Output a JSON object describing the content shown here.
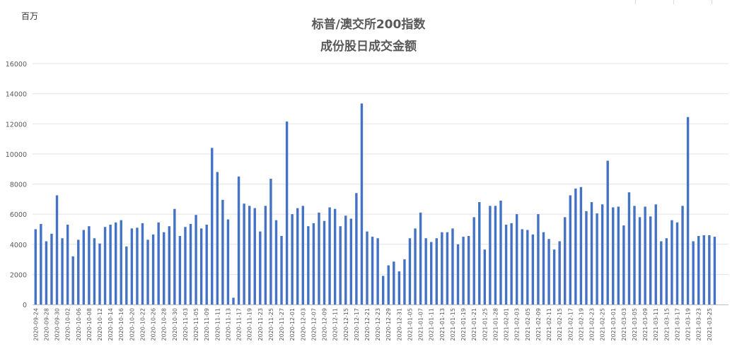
{
  "chart_data": {
    "type": "bar",
    "title": "标普/澳交所200指数",
    "subtitle": "成份股日成交金额",
    "ylabel": "百万",
    "ylim": [
      0,
      16000
    ],
    "yticks": [
      0,
      2000,
      4000,
      6000,
      8000,
      10000,
      12000,
      14000,
      16000
    ],
    "grid": true,
    "bar_color": "#4472C4",
    "x_labels": [
      "2020-09-24",
      "2020-09-28",
      "2020-09-30",
      "2020-10-02",
      "2020-10-06",
      "2020-10-08",
      "2020-10-12",
      "2020-10-14",
      "2020-10-16",
      "2020-10-20",
      "2020-10-22",
      "2020-10-26",
      "2020-10-28",
      "2020-10-30",
      "2020-11-03",
      "2020-11-05",
      "2020-11-09",
      "2020-11-11",
      "2020-11-13",
      "2020-11-17",
      "2020-11-19",
      "2020-11-23",
      "2020-11-25",
      "2020-11-27",
      "2020-12-01",
      "2020-12-03",
      "2020-12-07",
      "2020-12-09",
      "2020-12-11",
      "2020-12-15",
      "2020-12-17",
      "2020-12-21",
      "2020-12-23",
      "2020-12-29",
      "2020-12-31",
      "2021-01-05",
      "2021-01-07",
      "2021-01-11",
      "2021-01-13",
      "2021-01-15",
      "2021-01-19",
      "2021-01-21",
      "2021-01-25",
      "2021-01-28",
      "2021-02-01",
      "2021-02-03",
      "2021-02-05",
      "2021-02-09",
      "2021-02-11",
      "2021-02-15",
      "2021-02-17",
      "2021-02-19",
      "2021-02-23",
      "2021-02-25",
      "2021-03-01",
      "2021-03-03",
      "2021-03-05",
      "2021-03-09",
      "2021-03-11",
      "2021-03-15",
      "2021-03-17",
      "2021-03-19",
      "2021-03-23",
      "2021-03-25"
    ],
    "values": [
      5000,
      5350,
      4200,
      4700,
      7250,
      4400,
      5300,
      3200,
      4300,
      4950,
      5200,
      4400,
      4050,
      5150,
      5300,
      5450,
      5600,
      3850,
      5050,
      5100,
      5400,
      4300,
      4650,
      5450,
      4800,
      5200,
      6350,
      4550,
      5150,
      5350,
      5950,
      5050,
      5300,
      10400,
      8800,
      6950,
      5650,
      450,
      8500,
      6700,
      6550,
      6400,
      4850,
      6550,
      8350,
      5600,
      4550,
      12150,
      6000,
      6400,
      6550,
      5200,
      5400,
      6100,
      5550,
      6450,
      6350,
      5200,
      5900,
      5700,
      7400,
      13350,
      4850,
      4500,
      4400,
      1900,
      2600,
      2850,
      2200,
      3000,
      4400,
      5050,
      6100,
      4400,
      4150,
      4400,
      4800,
      4800,
      5050,
      4000,
      4500,
      4550,
      5800,
      6800,
      3650,
      6550,
      6550,
      6900,
      5300,
      5400,
      6000,
      5000,
      4950,
      4650,
      6000,
      4800,
      4350,
      3650,
      4200,
      5800,
      7250,
      7700,
      7800,
      6200,
      6800,
      6050,
      6650,
      9550,
      6450,
      6500,
      5250,
      7450,
      6550,
      5800,
      6500,
      5850,
      6650,
      4200,
      4400,
      5600,
      5450,
      6550,
      12450,
      4200,
      4550,
      4600,
      4600,
      4500
    ]
  }
}
